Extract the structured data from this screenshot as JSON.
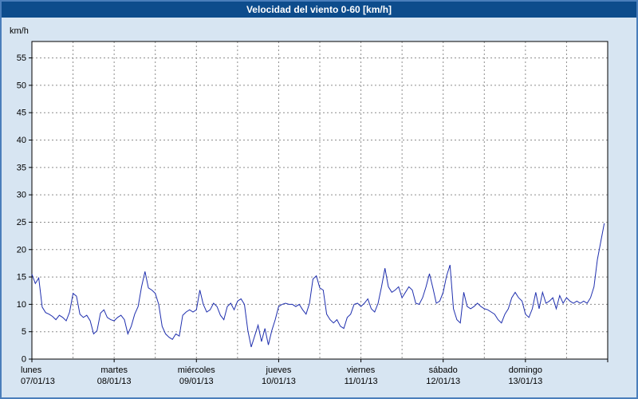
{
  "title": "Velocidad del viento 0-60 [km/h]",
  "colors": {
    "title_bar": "#0d4c8c",
    "title_text": "#ffffff",
    "window_background": "#d7e5f2",
    "window_border": "#4a7ebb",
    "plot_background": "#ffffff",
    "axis": "#000000",
    "grid": "#8c8c8c",
    "line": "#1f2fae",
    "label_text": "#000000"
  },
  "chart_data": {
    "type": "line",
    "title": "Velocidad del viento 0-60 [km/h]",
    "ylabel": "km/h",
    "xlabel": "",
    "ylim": [
      0,
      58
    ],
    "yticks": [
      0,
      5,
      10,
      15,
      20,
      25,
      30,
      35,
      40,
      45,
      50,
      55
    ],
    "grid": "dashed",
    "x_unit": "hours",
    "x_range_hours": 168,
    "x_grid_step_hours": 12,
    "x_tick_step_hours": 24,
    "days": [
      {
        "name": "lunes",
        "date": "07/01/13"
      },
      {
        "name": "martes",
        "date": "08/01/13"
      },
      {
        "name": "miércoles",
        "date": "09/01/13"
      },
      {
        "name": "jueves",
        "date": "10/01/13"
      },
      {
        "name": "viernes",
        "date": "11/01/13"
      },
      {
        "name": "sábado",
        "date": "12/01/13"
      },
      {
        "name": "domingo",
        "date": "13/01/13"
      }
    ],
    "series": [
      {
        "name": "Velocidad del viento",
        "color": "#1f2fae",
        "step_hours": 1,
        "values": [
          15.5,
          13.8,
          14.8,
          9.5,
          8.5,
          8.2,
          7.8,
          7.2,
          8.0,
          7.6,
          7.0,
          8.6,
          12.0,
          11.5,
          8.2,
          7.6,
          8.0,
          7.0,
          4.6,
          5.2,
          8.4,
          9.0,
          7.6,
          7.2,
          7.0,
          7.6,
          8.0,
          7.2,
          4.6,
          6.0,
          8.2,
          9.6,
          13.2,
          16.0,
          13.0,
          12.6,
          12.0,
          10.0,
          6.0,
          4.6,
          4.0,
          3.6,
          4.6,
          4.2,
          8.0,
          8.6,
          9.0,
          8.6,
          9.0,
          12.6,
          10.0,
          8.6,
          9.0,
          10.2,
          9.6,
          8.0,
          7.2,
          9.6,
          10.2,
          9.0,
          10.6,
          11.0,
          10.0,
          5.2,
          2.2,
          4.2,
          6.2,
          3.2,
          5.6,
          2.6,
          5.2,
          7.2,
          9.6,
          10.0,
          10.2,
          10.0,
          10.0,
          9.6,
          10.0,
          9.0,
          8.2,
          10.2,
          14.6,
          15.2,
          13.0,
          12.6,
          8.2,
          7.2,
          6.6,
          7.2,
          6.0,
          5.6,
          7.6,
          8.2,
          10.0,
          10.2,
          9.6,
          10.2,
          11.0,
          9.2,
          8.6,
          10.2,
          13.2,
          16.6,
          13.2,
          12.2,
          12.6,
          13.2,
          11.2,
          12.2,
          13.2,
          12.6,
          10.2,
          10.0,
          11.2,
          13.2,
          15.6,
          13.0,
          10.2,
          10.6,
          12.2,
          15.2,
          17.2,
          9.2,
          7.2,
          6.6,
          12.2,
          9.6,
          9.2,
          9.6,
          10.2,
          9.6,
          9.2,
          9.0,
          8.6,
          8.2,
          7.2,
          6.6,
          8.2,
          9.2,
          11.2,
          12.2,
          11.2,
          10.6,
          8.2,
          7.6,
          9.2,
          12.2,
          9.2,
          12.2,
          10.2,
          10.6,
          11.2,
          9.2,
          11.6,
          10.2,
          11.2,
          10.6,
          10.2,
          10.6,
          10.2,
          10.6,
          10.2,
          11.2,
          13.2,
          18.2,
          21.5,
          24.8
        ]
      }
    ]
  }
}
